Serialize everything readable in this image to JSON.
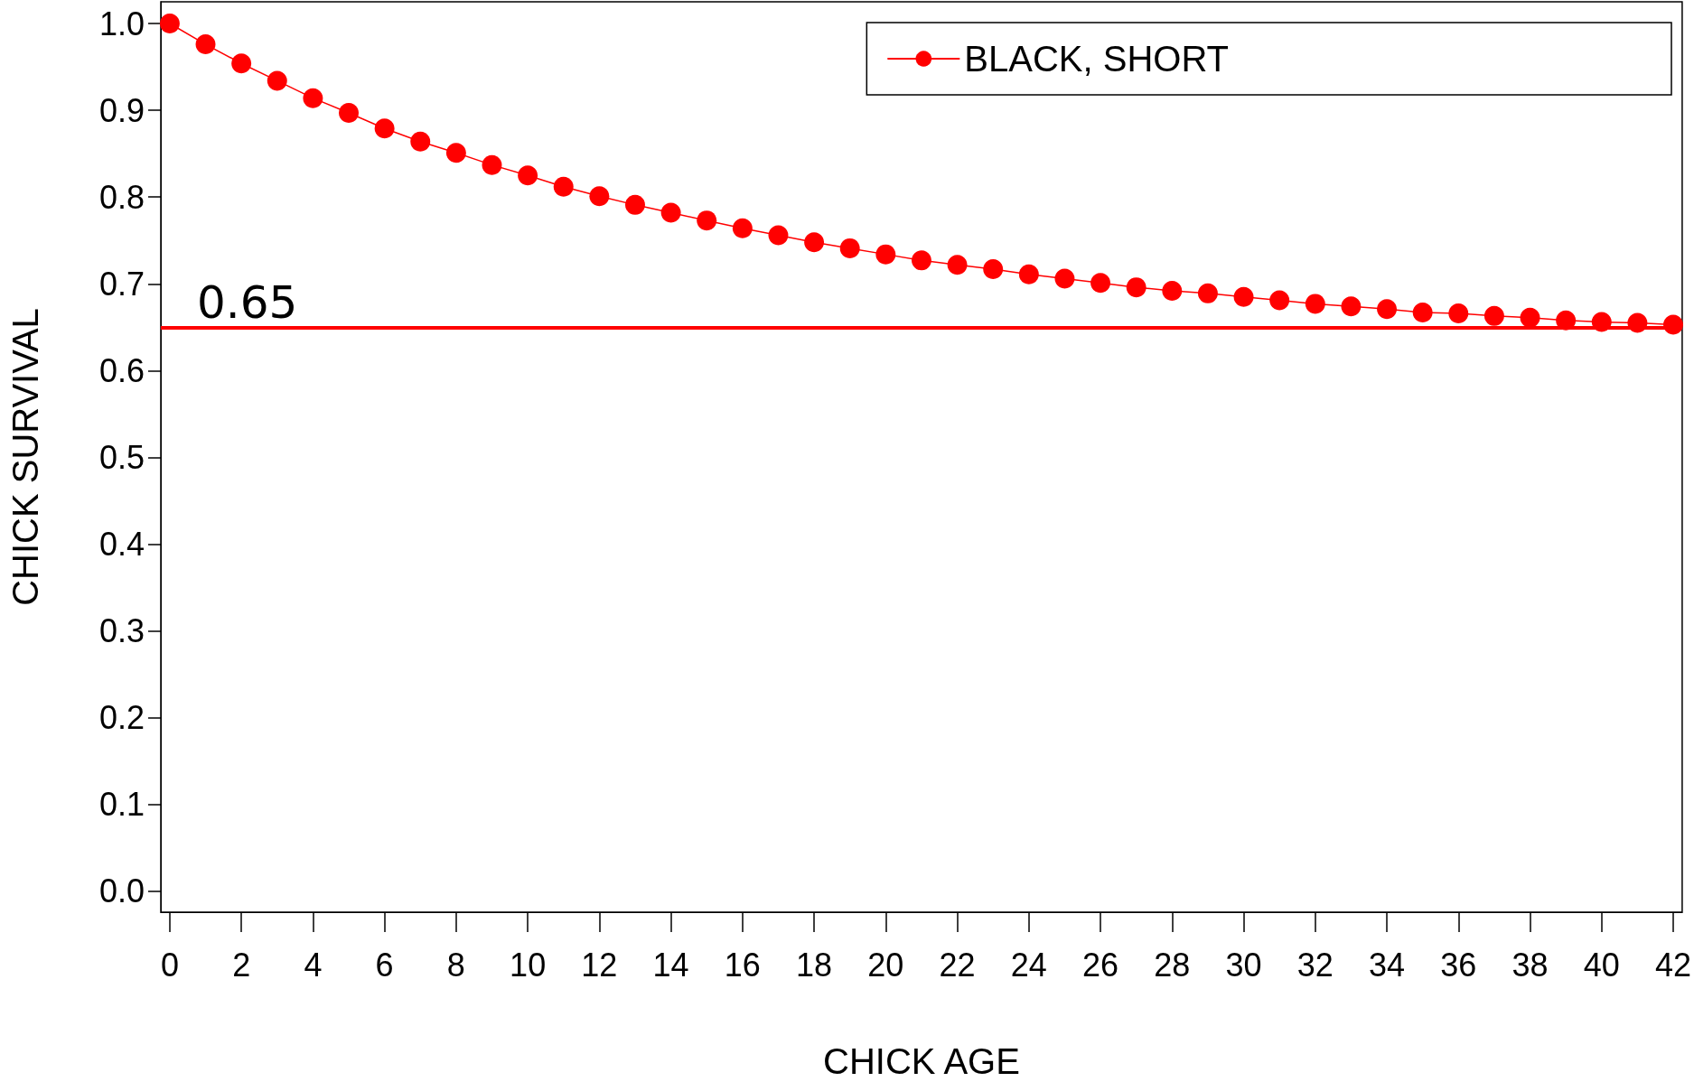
{
  "chart_data": {
    "type": "line",
    "xlabel": "CHICK AGE",
    "ylabel": "CHICK SURVIVAL",
    "x": [
      0,
      1,
      2,
      3,
      4,
      5,
      6,
      7,
      8,
      9,
      10,
      11,
      12,
      13,
      14,
      15,
      16,
      17,
      18,
      19,
      20,
      21,
      22,
      23,
      24,
      25,
      26,
      27,
      28,
      29,
      30,
      31,
      32,
      33,
      34,
      35,
      36,
      37,
      38,
      39,
      40,
      41,
      42
    ],
    "series": [
      {
        "name": "BLACK, SHORT",
        "color": "#ff0000",
        "values": [
          1.0,
          0.976,
          0.954,
          0.934,
          0.914,
          0.897,
          0.879,
          0.864,
          0.851,
          0.837,
          0.825,
          0.812,
          0.801,
          0.791,
          0.782,
          0.773,
          0.764,
          0.756,
          0.748,
          0.741,
          0.734,
          0.727,
          0.722,
          0.717,
          0.711,
          0.706,
          0.701,
          0.696,
          0.692,
          0.689,
          0.685,
          0.681,
          0.677,
          0.674,
          0.671,
          0.667,
          0.666,
          0.663,
          0.661,
          0.658,
          0.656,
          0.655,
          0.653
        ]
      }
    ],
    "xlim": [
      -0.25,
      42.25
    ],
    "xticks": [
      0,
      2,
      4,
      6,
      8,
      10,
      12,
      14,
      16,
      18,
      20,
      22,
      24,
      26,
      28,
      30,
      32,
      34,
      36,
      38,
      40,
      42
    ],
    "ylim": [
      -0.024,
      1.025
    ],
    "yticks": [
      {
        "value": 0,
        "label": "0.0"
      },
      0.1,
      0.2,
      0.3,
      0.4,
      0.5,
      0.6,
      0.7,
      0.8,
      0.9,
      {
        "value": 1,
        "label": "1.0"
      }
    ],
    "ref_lines": [
      {
        "axis": "y",
        "value": 0.65,
        "label": "0.65",
        "color": "#ff0000",
        "line_style": "solid"
      }
    ],
    "marker": "circle",
    "line_style": "solid",
    "grid": false,
    "legend": "top right"
  }
}
